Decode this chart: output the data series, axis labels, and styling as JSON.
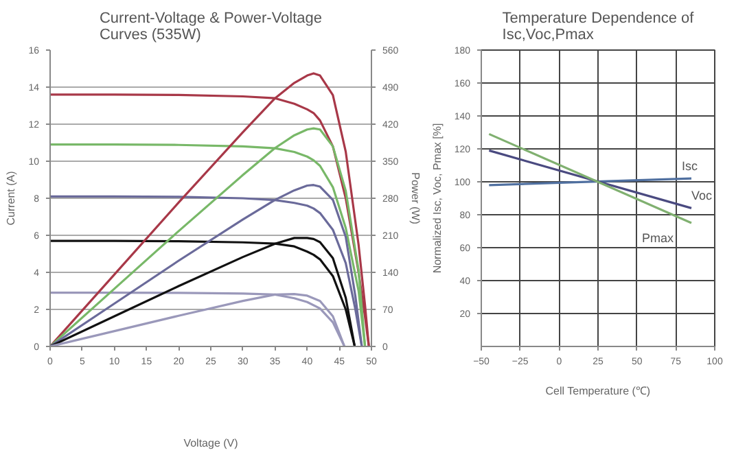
{
  "chart_data": [
    {
      "type": "line",
      "title": "Current-Voltage & Power-Voltage\nCurves (535W)",
      "xlabel": "Voltage (V)",
      "ylabel": "Current (A)",
      "y2label": "Power (W)",
      "xlim": [
        0,
        50
      ],
      "xticks": [
        0,
        5,
        10,
        15,
        20,
        25,
        30,
        35,
        40,
        45,
        50
      ],
      "ylim": [
        0,
        16
      ],
      "yticks": [
        0,
        2,
        4,
        6,
        8,
        10,
        12,
        14,
        16
      ],
      "y2lim": [
        0,
        560
      ],
      "y2ticks": [
        0,
        70,
        140,
        210,
        280,
        350,
        420,
        490,
        560
      ],
      "grid": "y",
      "legend": false,
      "marker": "none",
      "line_style": "solid",
      "series": [
        {
          "color": "#a83848",
          "x": [
            0,
            10,
            20,
            30,
            35,
            38,
            40,
            41,
            42,
            44,
            46,
            48,
            49,
            49.6
          ],
          "values": [
            13.6,
            13.6,
            13.58,
            13.5,
            13.4,
            13.1,
            12.8,
            12.6,
            12.2,
            10.8,
            8.0,
            4.0,
            1.6,
            0
          ]
        },
        {
          "color": "#78b868",
          "x": [
            0,
            10,
            20,
            30,
            35,
            38,
            40,
            41,
            42,
            44,
            46,
            48,
            49
          ],
          "values": [
            10.9,
            10.9,
            10.88,
            10.8,
            10.7,
            10.5,
            10.25,
            10.05,
            9.75,
            8.6,
            6.4,
            3.0,
            0
          ]
        },
        {
          "color": "#6a6a9a",
          "x": [
            0,
            10,
            20,
            30,
            35,
            38,
            40,
            41,
            42,
            44,
            46,
            47.5,
            48.5
          ],
          "values": [
            8.1,
            8.1,
            8.08,
            8.0,
            7.9,
            7.75,
            7.6,
            7.45,
            7.2,
            6.3,
            4.5,
            2.0,
            0
          ]
        },
        {
          "color": "#111111",
          "x": [
            0,
            10,
            20,
            30,
            35,
            38,
            40,
            41,
            42,
            44,
            46,
            47.4
          ],
          "values": [
            5.7,
            5.7,
            5.68,
            5.62,
            5.55,
            5.4,
            5.12,
            4.95,
            4.7,
            3.8,
            2.0,
            0
          ]
        },
        {
          "color": "#9a98ba",
          "x": [
            0,
            10,
            20,
            30,
            35,
            38,
            40,
            42,
            44,
            45.8
          ],
          "values": [
            2.9,
            2.9,
            2.89,
            2.86,
            2.8,
            2.6,
            2.4,
            2.05,
            1.3,
            0
          ]
        },
        {
          "color": "#a83848",
          "axis": "y2",
          "x": [
            0,
            10,
            20,
            30,
            35,
            38,
            40,
            41,
            42,
            44,
            46,
            48,
            49,
            49.6
          ],
          "values": [
            0,
            136,
            272,
            405,
            469,
            498,
            512,
            516,
            512,
            475,
            368,
            192,
            78,
            0
          ]
        },
        {
          "color": "#78b868",
          "axis": "y2",
          "x": [
            0,
            10,
            20,
            30,
            35,
            38,
            40,
            41,
            42,
            44,
            46,
            48,
            49
          ],
          "values": [
            0,
            109,
            218,
            324,
            375,
            399,
            410,
            412,
            410,
            378,
            294,
            144,
            0
          ]
        },
        {
          "color": "#6a6a9a",
          "axis": "y2",
          "x": [
            0,
            10,
            20,
            30,
            35,
            38,
            40,
            41,
            42,
            44,
            46,
            47.5,
            48.5
          ],
          "values": [
            0,
            81,
            162,
            240,
            277,
            295,
            304,
            305,
            302,
            277,
            207,
            95,
            0
          ]
        },
        {
          "color": "#111111",
          "axis": "y2",
          "x": [
            0,
            10,
            20,
            30,
            35,
            38,
            40,
            41,
            42,
            44,
            46,
            47.4
          ],
          "values": [
            0,
            57,
            114,
            169,
            194,
            205,
            205,
            203,
            197,
            167,
            92,
            0
          ]
        },
        {
          "color": "#9a98ba",
          "axis": "y2",
          "x": [
            0,
            10,
            20,
            30,
            35,
            38,
            40,
            42,
            44,
            45.8
          ],
          "values": [
            0,
            29,
            58,
            86,
            98,
            99,
            96,
            86,
            57,
            0
          ]
        }
      ]
    },
    {
      "type": "line",
      "title": "Temperature Dependence of\nIsc,Voc,Pmax",
      "xlabel": "Cell Temperature (℃)",
      "ylabel": "Normalized Isc, Voc, Pmax [%]",
      "xlim": [
        -50,
        100
      ],
      "xticks": [
        -50,
        -25,
        0,
        25,
        50,
        75,
        100
      ],
      "ylim": [
        0,
        180
      ],
      "yticks": [
        20,
        40,
        60,
        80,
        100,
        120,
        140,
        160,
        180
      ],
      "grid": true,
      "legend": false,
      "marker": "none",
      "line_style": "solid",
      "series": [
        {
          "name": "Isc",
          "color": "#5070a0",
          "x": [
            -45,
            85
          ],
          "values": [
            98,
            102
          ]
        },
        {
          "name": "Voc",
          "color": "#4a4a80",
          "x": [
            -45,
            85
          ],
          "values": [
            119,
            84
          ]
        },
        {
          "name": "Pmax",
          "color": "#80b070",
          "x": [
            -45,
            85
          ],
          "values": [
            129,
            75
          ]
        }
      ]
    }
  ]
}
